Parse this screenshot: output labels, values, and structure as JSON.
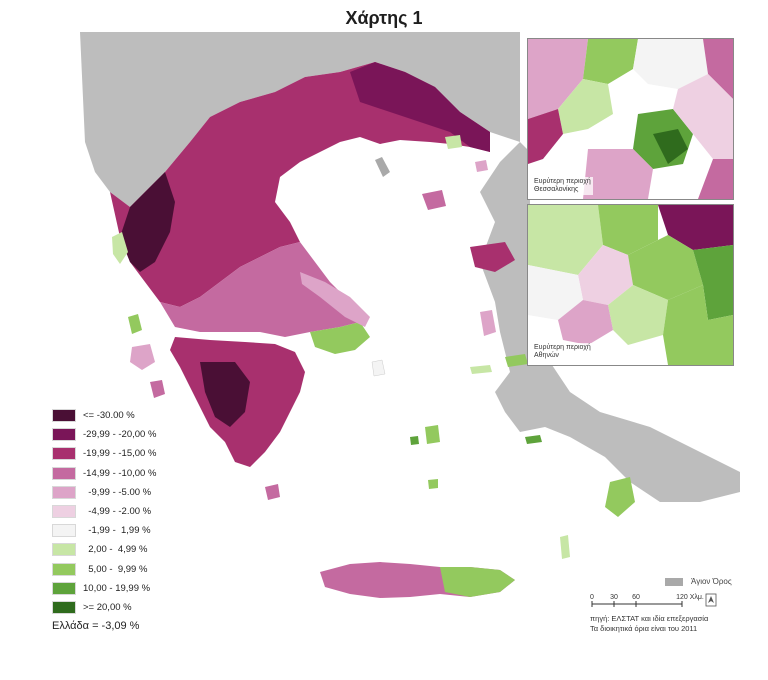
{
  "title": "Χάρτης 1",
  "legend": {
    "items": [
      {
        "label": "<= -30.00 %",
        "color": "#4a0f35"
      },
      {
        "label": "-29,99 - -20,00 %",
        "color": "#7a1558"
      },
      {
        "label": "-19,99 - -15,00 %",
        "color": "#a8306e"
      },
      {
        "label": "-14,99 - -10,00 %",
        "color": "#c46aa0"
      },
      {
        "label": "  -9,99 - -5.00 %",
        "color": "#dda4c8"
      },
      {
        "label": "  -4,99 - -2.00 %",
        "color": "#eed0e2"
      },
      {
        "label": "  -1,99 -  1,99 %",
        "color": "#f4f4f4"
      },
      {
        "label": "  2,00 -  4,99 %",
        "color": "#c7e6a5"
      },
      {
        "label": "  5,00 -  9,99 %",
        "color": "#93c95e"
      },
      {
        "label": "10,00 - 19,99 %",
        "color": "#5ea33b"
      },
      {
        "label": ">= 20,00 %",
        "color": "#2f6b1d"
      }
    ],
    "total": "Ελλάδα = -3,09 %"
  },
  "insets": {
    "thessaloniki": "Ευρύτερη περιοχή\nΘεσσαλονίκης",
    "athens": "Ευρύτερη περιοχή\nΑθηνών"
  },
  "mount_athos": {
    "label": "Άγιον Όρος",
    "color": "#a9a9a9"
  },
  "scale": {
    "ticks": [
      "0",
      "30",
      "60",
      "120 Χλμ."
    ]
  },
  "source": {
    "line1": "πηγή: ΕΛΣΤΑΤ και ιδία επεξεργασία",
    "line2": "Τα διοικητικά όρια είναι του 2011"
  },
  "colors": {
    "neighbor_land": "#bdbdbd",
    "sea": "#ffffff"
  }
}
